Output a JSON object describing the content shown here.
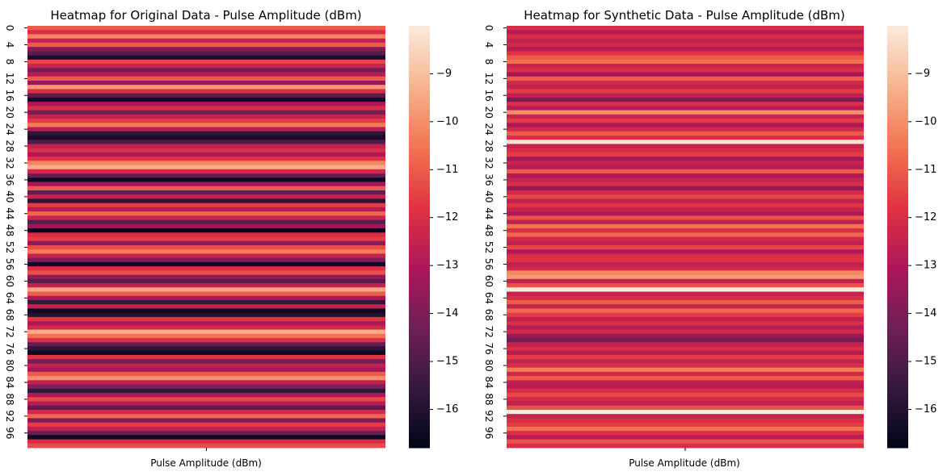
{
  "colormap": {
    "name": "rocket",
    "stops": [
      "#03051a",
      "#36193e",
      "#701f57",
      "#ae1759",
      "#e13342",
      "#f37651",
      "#f6b48f",
      "#faebdd"
    ]
  },
  "chart_data": [
    {
      "type": "heatmap",
      "title": "Heatmap for Original Data - Pulse Amplitude (dBm)",
      "xlabel": "Pulse Amplitude (dBm)",
      "ylabel": "",
      "n_rows": 100,
      "y_tick_labels": [
        "0",
        "4",
        "8",
        "12",
        "16",
        "20",
        "24",
        "28",
        "32",
        "36",
        "40",
        "44",
        "48",
        "52",
        "56",
        "60",
        "64",
        "68",
        "72",
        "76",
        "80",
        "84",
        "88",
        "92",
        "96"
      ],
      "colorbar": {
        "range": [
          -16.8,
          -8.0
        ],
        "tick_labels": [
          "−9",
          "−10",
          "−11",
          "−12",
          "−13",
          "−14",
          "−15",
          "−16"
        ],
        "tick_values": [
          -9,
          -10,
          -11,
          -12,
          -13,
          -14,
          -15,
          -16
        ]
      },
      "values": [
        -11.0,
        -12.0,
        -10.2,
        -12.5,
        -11.0,
        -13.8,
        -14.8,
        -16.2,
        -11.4,
        -12.4,
        -14.2,
        -12.8,
        -11.0,
        -13.5,
        -9.8,
        -12.0,
        -14.8,
        -16.4,
        -13.0,
        -12.0,
        -14.2,
        -12.5,
        -11.6,
        -10.4,
        -12.8,
        -15.8,
        -16.3,
        -15.0,
        -12.6,
        -12.0,
        -13.0,
        -11.8,
        -10.2,
        -9.4,
        -12.2,
        -14.5,
        -16.5,
        -13.2,
        -11.0,
        -14.6,
        -12.5,
        -15.8,
        -11.6,
        -12.8,
        -10.8,
        -12.4,
        -14.8,
        -13.5,
        -16.8,
        -12.0,
        -11.6,
        -13.8,
        -11.3,
        -10.4,
        -12.5,
        -14.0,
        -16.5,
        -12.0,
        -11.2,
        -13.5,
        -14.8,
        -12.6,
        -9.5,
        -11.0,
        -13.0,
        -15.6,
        -12.5,
        -16.5,
        -16.0,
        -11.8,
        -13.0,
        -12.2,
        -9.4,
        -10.6,
        -12.0,
        -14.6,
        -15.8,
        -16.5,
        -11.8,
        -14.2,
        -12.5,
        -13.2,
        -11.0,
        -10.0,
        -12.6,
        -14.0,
        -15.6,
        -13.0,
        -11.4,
        -12.8,
        -14.8,
        -12.2,
        -10.8,
        -14.0,
        -11.6,
        -12.6,
        -14.5,
        -16.6,
        -12.0,
        -11.3
      ]
    },
    {
      "type": "heatmap",
      "title": "Heatmap for Synthetic Data - Pulse Amplitude (dBm)",
      "xlabel": "Pulse Amplitude (dBm)",
      "ylabel": "",
      "n_rows": 100,
      "y_tick_labels": [
        "0",
        "4",
        "8",
        "12",
        "16",
        "20",
        "24",
        "28",
        "32",
        "36",
        "40",
        "44",
        "48",
        "52",
        "56",
        "60",
        "64",
        "68",
        "72",
        "76",
        "80",
        "84",
        "88",
        "92",
        "96"
      ],
      "colorbar": {
        "range": [
          -16.8,
          -8.0
        ],
        "tick_labels": [
          "−9",
          "−10",
          "−11",
          "−12",
          "−13",
          "−14",
          "−15",
          "−16"
        ],
        "tick_values": [
          -9,
          -10,
          -11,
          -12,
          -13,
          -14,
          -15,
          -16
        ]
      },
      "values": [
        -12.0,
        -12.8,
        -12.0,
        -12.6,
        -12.2,
        -12.8,
        -11.8,
        -11.0,
        -10.6,
        -12.4,
        -12.0,
        -13.2,
        -11.0,
        -12.2,
        -12.5,
        -11.6,
        -12.6,
        -14.2,
        -12.0,
        -12.8,
        -10.0,
        -12.4,
        -11.6,
        -13.0,
        -12.2,
        -11.0,
        -12.0,
        -8.2,
        -12.5,
        -12.0,
        -11.6,
        -13.2,
        -12.4,
        -12.8,
        -11.0,
        -13.0,
        -12.5,
        -12.0,
        -13.5,
        -12.2,
        -11.4,
        -12.6,
        -11.8,
        -12.4,
        -13.0,
        -11.2,
        -12.6,
        -10.6,
        -12.0,
        -10.8,
        -12.2,
        -12.6,
        -11.4,
        -13.0,
        -12.0,
        -11.8,
        -12.6,
        -12.2,
        -10.2,
        -9.8,
        -12.5,
        -11.2,
        -8.0,
        -12.5,
        -12.0,
        -11.0,
        -12.4,
        -10.8,
        -11.6,
        -12.6,
        -12.0,
        -12.8,
        -12.2,
        -13.4,
        -14.2,
        -12.6,
        -12.0,
        -12.8,
        -11.6,
        -12.5,
        -12.0,
        -10.4,
        -12.2,
        -11.0,
        -12.6,
        -12.8,
        -12.0,
        -11.4,
        -12.2,
        -12.6,
        -11.2,
        -8.0,
        -12.5,
        -12.0,
        -11.6,
        -10.6,
        -12.0,
        -12.8,
        -11.2,
        -12.0
      ]
    }
  ]
}
